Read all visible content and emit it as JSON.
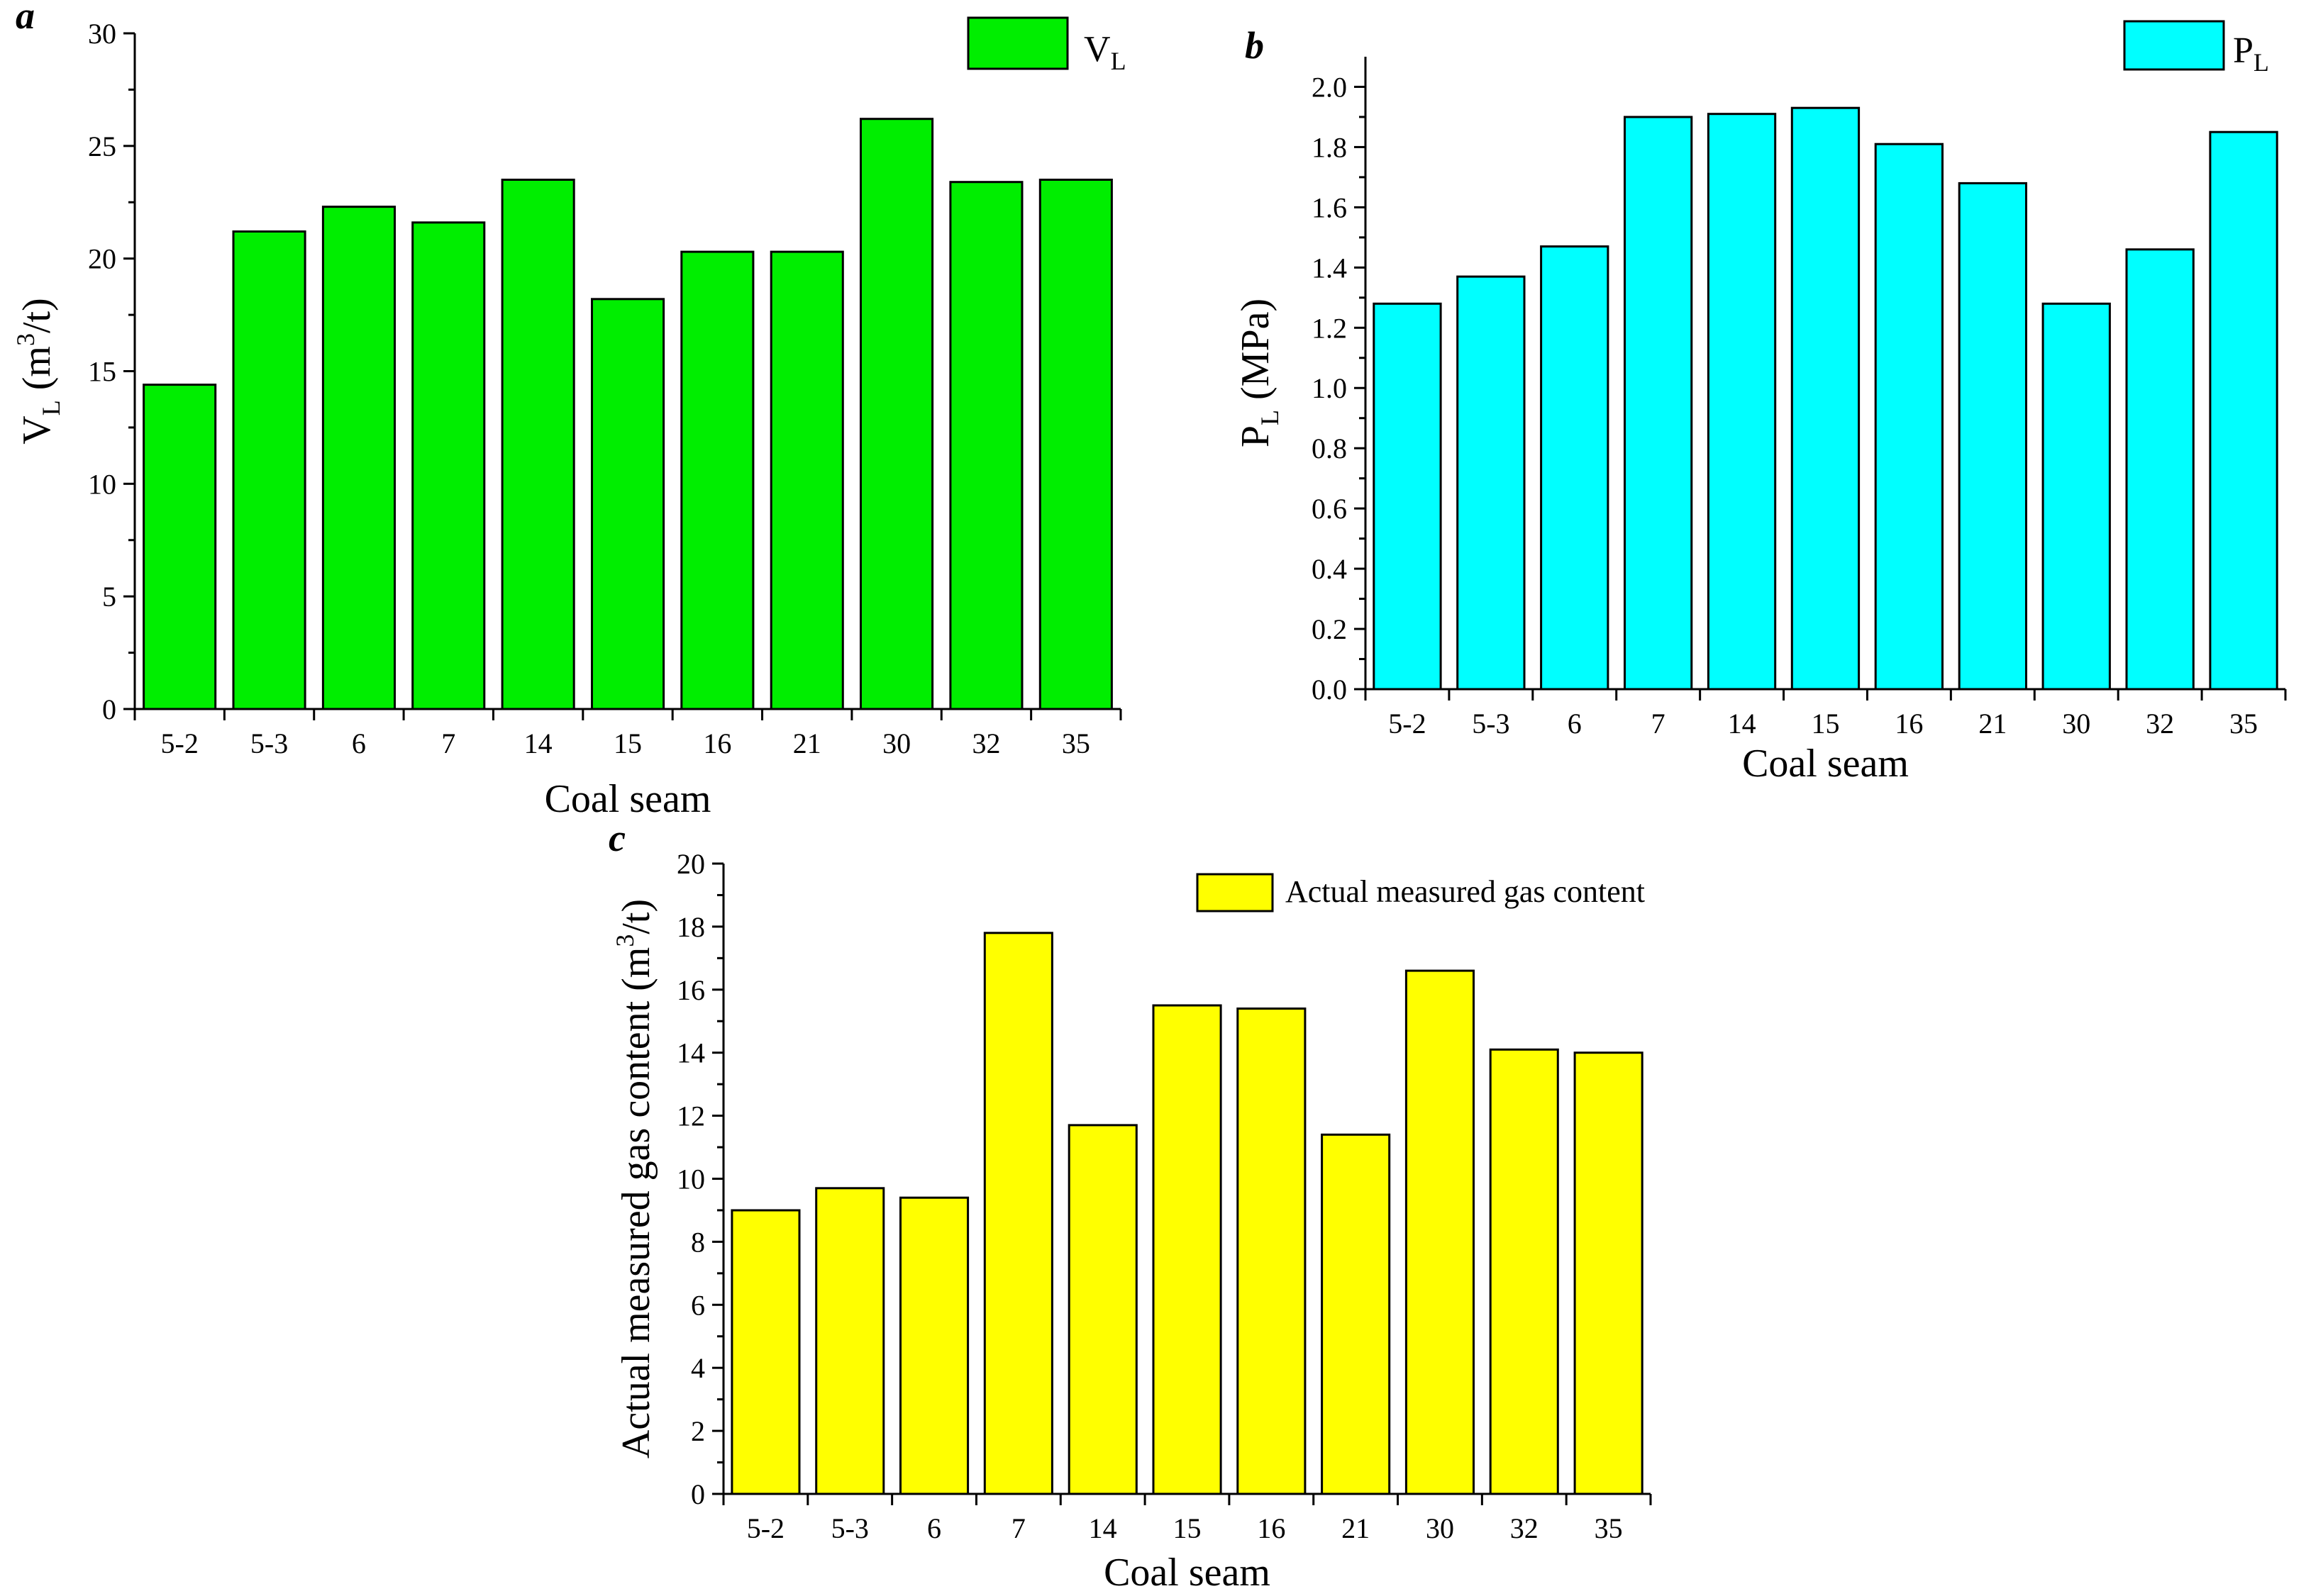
{
  "chart_data": [
    {
      "type": "bar",
      "panel": "a",
      "categories": [
        "5-2",
        "5-3",
        "6",
        "7",
        "14",
        "15",
        "16",
        "21",
        "30",
        "32",
        "35"
      ],
      "values": [
        14.4,
        21.2,
        22.3,
        21.6,
        23.5,
        18.2,
        20.3,
        20.3,
        26.2,
        23.4,
        23.5
      ],
      "bar_color": "#00ee00",
      "legend": {
        "main": "V",
        "sub": "L",
        "position": "top-right"
      },
      "xlabel": "Coal seam",
      "ylabel": {
        "main": "V",
        "sub": "L",
        "open": " (m",
        "sup": "3",
        "close": "/t)"
      },
      "ylim": [
        0,
        30
      ],
      "yticks": [
        "0",
        "5",
        "10",
        "15",
        "20",
        "25",
        "30"
      ],
      "grid": false
    },
    {
      "type": "bar",
      "panel": "b",
      "categories": [
        "5-2",
        "5-3",
        "6",
        "7",
        "14",
        "15",
        "16",
        "21",
        "30",
        "32",
        "35"
      ],
      "values": [
        1.28,
        1.37,
        1.47,
        1.9,
        1.91,
        1.93,
        1.81,
        1.68,
        1.28,
        1.46,
        1.85
      ],
      "bar_color": "#00ffff",
      "legend": {
        "main": "P",
        "sub": "L",
        "position": "top-right"
      },
      "xlabel": "Coal seam",
      "ylabel": {
        "main": "P",
        "sub": "L",
        "open": " (MPa)",
        "sup": "",
        "close": ""
      },
      "ylim": [
        0,
        2.1
      ],
      "yticks": [
        "0.0",
        "0.2",
        "0.4",
        "0.6",
        "0.8",
        "1.0",
        "1.2",
        "1.4",
        "1.6",
        "1.8",
        "2.0"
      ],
      "grid": false
    },
    {
      "type": "bar",
      "panel": "c",
      "categories": [
        "5-2",
        "5-3",
        "6",
        "7",
        "14",
        "15",
        "16",
        "21",
        "30",
        "32",
        "35"
      ],
      "values": [
        9.0,
        9.7,
        9.4,
        17.8,
        11.7,
        15.5,
        15.4,
        11.4,
        16.6,
        14.1,
        14.0
      ],
      "bar_color": "#ffff00",
      "legend": {
        "main": "Actual measured gas content",
        "sub": "",
        "position": "top-right"
      },
      "xlabel": "Coal seam",
      "ylabel": {
        "main": "Actual measured gas content",
        "sub": "",
        "open": " (m",
        "sup": "3",
        "close": "/t)"
      },
      "ylim": [
        0,
        20
      ],
      "yticks": [
        "0",
        "2",
        "4",
        "6",
        "8",
        "10",
        "12",
        "14",
        "16",
        "18",
        "20"
      ],
      "grid": false
    }
  ]
}
